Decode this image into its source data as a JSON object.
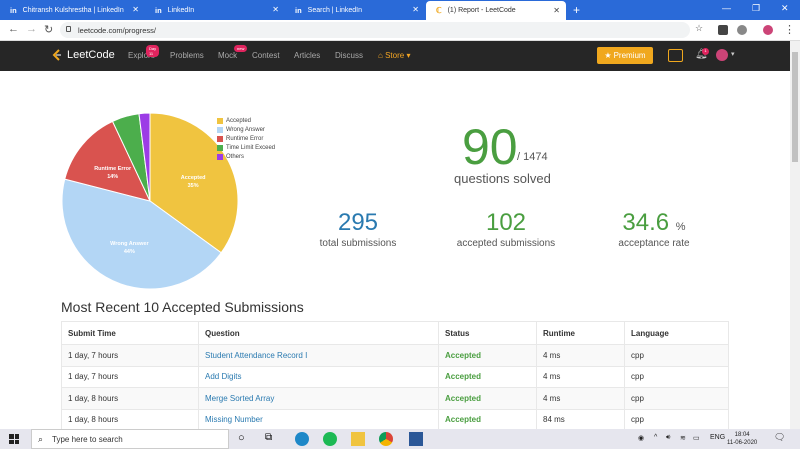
{
  "browser": {
    "tabs": [
      {
        "label": "Chitransh Kulshrestha | LinkedIn",
        "icon": "in"
      },
      {
        "label": "LinkedIn",
        "icon": "in"
      },
      {
        "label": "Search | LinkedIn",
        "icon": "in"
      },
      {
        "label": "(1) Report - LeetCode",
        "icon": "leetcode"
      }
    ],
    "url": "leetcode.com/progress/"
  },
  "nav": {
    "brand": "LeetCode",
    "links": [
      "Explore",
      "Problems",
      "Mock",
      "Contest",
      "Articles",
      "Discuss"
    ],
    "explore_badge": "Day 11",
    "mock_badge": "new",
    "store": "Store",
    "premium": "Premium",
    "notif_count": "1"
  },
  "chart_data": {
    "type": "pie",
    "categories": [
      "Accepted",
      "Wrong Answer",
      "Runtime Error",
      "Time Limit Exceed",
      "Others"
    ],
    "values": [
      35,
      44,
      14,
      5,
      2
    ],
    "colors": [
      "#f0c440",
      "#b3d6f5",
      "#d9534f",
      "#4cae4c",
      "#9c3ce6"
    ],
    "labels": {
      "Accepted": "Accepted\n35%",
      "Wrong Answer": "Wrong Answer\n44%",
      "Runtime Error": "Runtime Error\n14%"
    }
  },
  "summary": {
    "solved": "90",
    "total": "/ 1474",
    "solved_label": "questions solved",
    "submissions": "295",
    "submissions_label": "total submissions",
    "accepted": "102",
    "accepted_label": "accepted submissions",
    "rate": "34.6",
    "rate_unit": "%",
    "rate_label": "acceptance rate"
  },
  "recent": {
    "title": "Most Recent 10 Accepted Submissions",
    "headers": [
      "Submit Time",
      "Question",
      "Status",
      "Runtime",
      "Language"
    ],
    "rows": [
      [
        "1 day, 7 hours",
        "Student Attendance Record I",
        "Accepted",
        "4 ms",
        "cpp"
      ],
      [
        "1 day, 7 hours",
        "Add Digits",
        "Accepted",
        "4 ms",
        "cpp"
      ],
      [
        "1 day, 8 hours",
        "Merge Sorted Array",
        "Accepted",
        "4 ms",
        "cpp"
      ],
      [
        "1 day, 8 hours",
        "Missing Number",
        "Accepted",
        "84 ms",
        "cpp"
      ]
    ]
  },
  "taskbar": {
    "search_placeholder": "Type here to search",
    "time": "18:04",
    "date": "11-06-2020",
    "lang": "ENG"
  }
}
